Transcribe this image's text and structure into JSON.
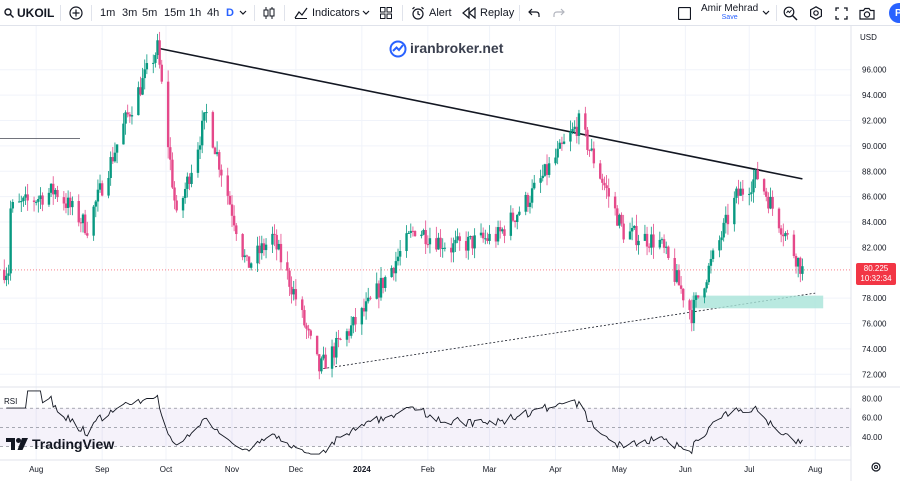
{
  "toolbar": {
    "symbol": "UKOIL",
    "timeframes": [
      "1m",
      "3m",
      "5m",
      "15m",
      "1h",
      "4h",
      "D"
    ],
    "active_timeframe": "D",
    "indicators_label": "Indicators",
    "alert_label": "Alert",
    "replay_label": "Replay",
    "user_name": "Amir Mehrad",
    "save_label": "Save",
    "publish_label": "Pu"
  },
  "watermark": "iranbroker.net",
  "brand": "TradingView",
  "price_axis": {
    "currency": "USD",
    "ticks": [
      "96.000",
      "94.000",
      "92.000",
      "90.000",
      "88.000",
      "86.000",
      "84.000",
      "82.000",
      "78.000",
      "76.000",
      "74.000",
      "72.000"
    ]
  },
  "current_price": {
    "value": "80.225",
    "countdown": "10:32:34"
  },
  "rsi": {
    "label": "RSI",
    "ticks": [
      "80.00",
      "60.00",
      "40.00"
    ]
  },
  "time_axis": [
    "Aug",
    "Sep",
    "Oct",
    "Nov",
    "Dec",
    "2024",
    "Feb",
    "Mar",
    "Apr",
    "May",
    "Jun",
    "Jul",
    "Aug"
  ],
  "colors": {
    "up": "#089981",
    "down": "#f23645",
    "down_candle": "#e5498a",
    "accent": "#2962ff",
    "support_zone": "#a7e3d8"
  },
  "chart_data": {
    "type": "candlestick",
    "instrument": "UKOIL",
    "timeframe": "D",
    "ylim": [
      71,
      98.5
    ],
    "key_points": [
      {
        "date": "2023-09-27",
        "price": 97.7
      },
      {
        "date": "2023-12-12",
        "price": 72.4
      },
      {
        "date": "2024-04-12",
        "price": 91.8
      },
      {
        "date": "2024-06-04",
        "price": 76.8
      },
      {
        "date": "2024-07-05",
        "price": 87.6
      },
      {
        "date": "2024-07-26",
        "price": 80.225
      }
    ],
    "trendlines": [
      {
        "name": "resistance",
        "from": [
          "2023-09-27",
          97.7
        ],
        "to": [
          "2024-07-26",
          87.4
        ],
        "style": "solid"
      },
      {
        "name": "support",
        "from": [
          "2023-12-12",
          72.4
        ],
        "to": [
          "2024-08-01",
          78.4
        ],
        "style": "dashed"
      }
    ],
    "support_zone": {
      "from": "2024-06-04",
      "to": "2024-08-01",
      "low": 77.2,
      "high": 78.2
    },
    "rsi_levels": [
      70,
      50,
      30
    ]
  }
}
